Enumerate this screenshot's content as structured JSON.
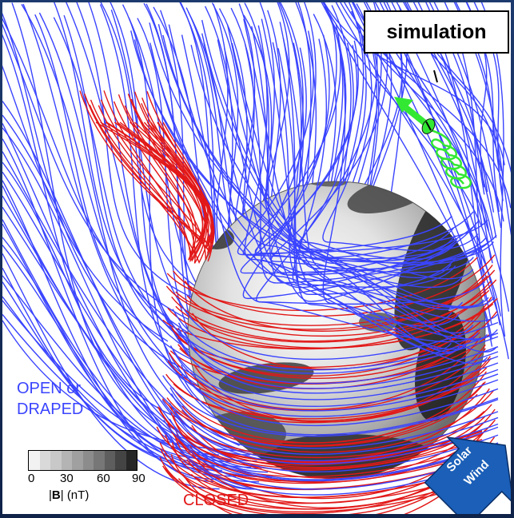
{
  "title_box": {
    "text": "simulation"
  },
  "labels": {
    "open_line1": "OPEN or",
    "open_line2": "DRAPED",
    "closed": "CLOSED"
  },
  "colorbar": {
    "ticks": [
      "0",
      "30",
      "60",
      "90"
    ],
    "unit_prefix": "|",
    "unit_bold": "B",
    "unit_suffix": "| (nT)",
    "colors": [
      "#f2f2f2",
      "#d9d9d9",
      "#c8c8c8",
      "#b4b4b4",
      "#a0a0a0",
      "#8c8c8c",
      "#777777",
      "#5e5e5e",
      "#444444",
      "#262626"
    ]
  },
  "solar_wind": {
    "line1": "Solar",
    "line2": "Wind",
    "color": "#1b5fb8"
  },
  "colors": {
    "open_field": "#3a44ff",
    "closed_field": "#e21818",
    "gyro_particle": "#33e833",
    "frame": "#14284f"
  }
}
